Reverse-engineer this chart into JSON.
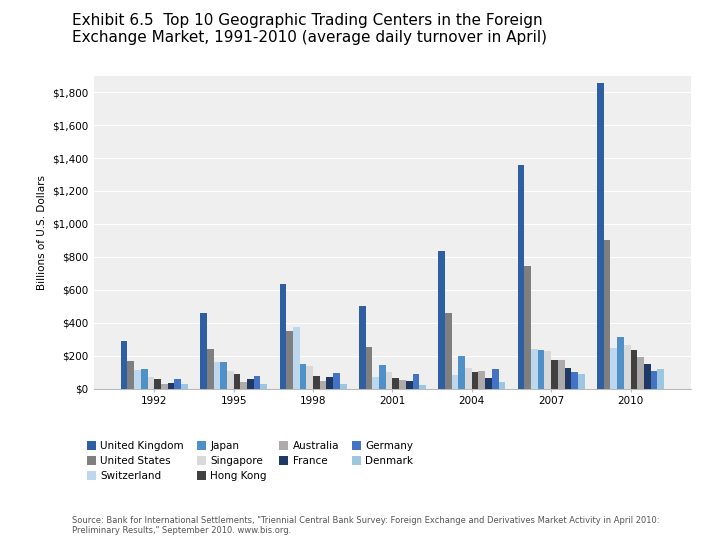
{
  "title_line1": "Exhibit 6.5  Top 10 Geographic Trading Centers in the Foreign",
  "title_line2": "Exchange Market, 1991-2010 (average daily turnover in April)",
  "ylabel": "Billions of U.S. Dollars",
  "source": "Source: Bank for International Settlements, \"Triennial Central Bank Survey: Foreign Exchange and Derivatives Market Activity in April 2010:\nPreliminary Results,\" September 2010. www.bis.org.",
  "years": [
    1992,
    1995,
    1998,
    2001,
    2004,
    2007,
    2010
  ],
  "countries": [
    "United Kingdom",
    "United States",
    "Switzerland",
    "Japan",
    "Singapore",
    "Hong Kong",
    "Australia",
    "France",
    "Germany",
    "Denmark"
  ],
  "colors": [
    "#2e5fa3",
    "#7f7f7f",
    "#bdd7ee",
    "#4f90c8",
    "#d9d9d9",
    "#404040",
    "#aeaaaa",
    "#1f3864",
    "#4472c4",
    "#9dc6e0"
  ],
  "data": {
    "United Kingdom": [
      290,
      460,
      637,
      504,
      835,
      1359,
      1854
    ],
    "United States": [
      167,
      244,
      351,
      254,
      461,
      745,
      904
    ],
    "Switzerland": [
      115,
      160,
      375,
      71,
      85,
      242,
      249
    ],
    "Japan": [
      120,
      161,
      148,
      147,
      199,
      238,
      312
    ],
    "Singapore": [
      74,
      105,
      139,
      101,
      125,
      231,
      266
    ],
    "Hong Kong": [
      60,
      90,
      79,
      67,
      102,
      175,
      238
    ],
    "Australia": [
      29,
      39,
      47,
      52,
      107,
      175,
      192
    ],
    "France": [
      33,
      58,
      72,
      48,
      67,
      127,
      152
    ],
    "Germany": [
      57,
      76,
      94,
      88,
      120,
      101,
      109
    ],
    "Denmark": [
      27,
      31,
      27,
      23,
      42,
      88,
      120
    ]
  },
  "ylim": [
    0,
    1900
  ],
  "yticks": [
    0,
    200,
    400,
    600,
    800,
    1000,
    1200,
    1400,
    1600,
    1800
  ],
  "ytick_labels": [
    "$0",
    "$200",
    "$400",
    "$600",
    "$800",
    "$1,000",
    "$1,200",
    "$1,400",
    "$1,600",
    "$1,800"
  ],
  "plot_bg_color": "#efefef",
  "legend_row1": [
    "United Kingdom",
    "United States",
    "Switzerland",
    "Japan"
  ],
  "legend_row2": [
    "Singapore",
    "Hong Kong",
    "Australia",
    "France"
  ],
  "legend_row3": [
    "Germany",
    "Denmark"
  ]
}
